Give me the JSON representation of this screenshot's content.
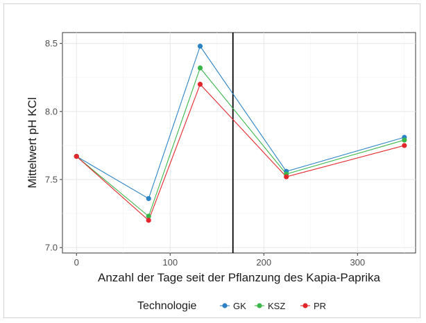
{
  "chart_data": {
    "type": "line",
    "xlabel": "Anzahl der Tage seit der Pflanzung des Kapia-Paprika",
    "ylabel": "Mittelwert pH KCl",
    "xlim": [
      -15,
      362
    ],
    "ylim": [
      6.96,
      8.58
    ],
    "x_ticks": [
      0,
      100,
      200,
      300
    ],
    "y_ticks": [
      7.0,
      7.5,
      8.0,
      8.5
    ],
    "y_tick_labels": [
      "7.0",
      "7.5",
      "8.0",
      "8.5"
    ],
    "grid": true,
    "reference_line_x": 167,
    "legend": {
      "title": "Technologie",
      "placement": "bottom"
    },
    "x": [
      0,
      77,
      132,
      224,
      350
    ],
    "series": [
      {
        "name": "GK",
        "color": "#2b83c6",
        "values": [
          7.67,
          7.36,
          8.48,
          7.56,
          7.81
        ]
      },
      {
        "name": "KSZ",
        "color": "#3ab54a",
        "values": [
          7.67,
          7.23,
          8.32,
          7.54,
          7.79
        ]
      },
      {
        "name": "PR",
        "color": "#e3262b",
        "values": [
          7.67,
          7.2,
          8.2,
          7.52,
          7.75
        ]
      }
    ]
  }
}
